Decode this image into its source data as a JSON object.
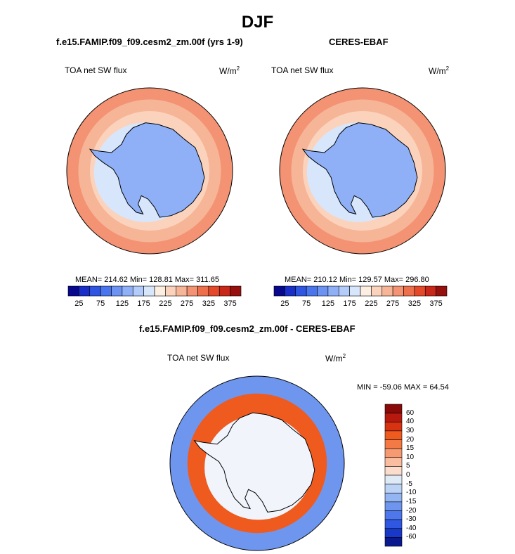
{
  "page": {
    "title": "DJF"
  },
  "panels": [
    {
      "title": "f.e15.FAMIP.f09_f09.cesm2_zm.00f (yrs 1-9)",
      "variable": "TOA net SW flux",
      "units": "W/m",
      "units_exp": "2",
      "stats": "MEAN= 214.62  Min= 128.81  Max= 311.65"
    },
    {
      "title": "CERES-EBAF",
      "variable": "TOA net SW flux",
      "units": "W/m",
      "units_exp": "2",
      "stats": "MEAN= 210.12  Min= 129.57  Max= 296.80"
    },
    {
      "title": "f.e15.FAMIP.f09_f09.cesm2_zm.00f - CERES-EBAF",
      "variable": "TOA net SW flux",
      "units": "W/m",
      "units_exp": "2",
      "stats": "MIN = -59.06 MAX =  64.54"
    }
  ],
  "colorbar_abs": {
    "colors": [
      "#08088c",
      "#1a2fc8",
      "#2f56e0",
      "#4a75ec",
      "#6c93f2",
      "#8fb0f6",
      "#b4ccfa",
      "#d8e6fc",
      "#fdeee2",
      "#fbd3bd",
      "#f7b597",
      "#f39373",
      "#ee6f4c",
      "#e44a2a",
      "#c8281a",
      "#96100e"
    ],
    "ticks": [
      "25",
      "75",
      "125",
      "175",
      "225",
      "275",
      "325",
      "375"
    ]
  },
  "colorbar_diff": {
    "colors": [
      "#8a0a0a",
      "#b8190f",
      "#d83211",
      "#ef5a1f",
      "#f47a45",
      "#f79a72",
      "#fabd9f",
      "#fcdccb",
      "#dfeaf7",
      "#bcd3f6",
      "#94b5f3",
      "#6f96ef",
      "#4d77ea",
      "#2f57e2",
      "#1738c8",
      "#0a1a8e"
    ],
    "ticks": [
      "60",
      "40",
      "30",
      "20",
      "15",
      "10",
      "5",
      "0",
      "-5",
      "-10",
      "-15",
      "-20",
      "-30",
      "-40",
      "-60"
    ]
  },
  "map_colors": {
    "ocean_mid": "#f7b597",
    "ocean_light": "#fbd3bd",
    "ocean_high": "#f39373",
    "sea_ice": "#d8e6fc",
    "antarctica": "#8fb0f6",
    "diff_bg": "#f1f5fb",
    "diff_pos": "#ef5a1f",
    "diff_neg": "#6f96ef"
  }
}
